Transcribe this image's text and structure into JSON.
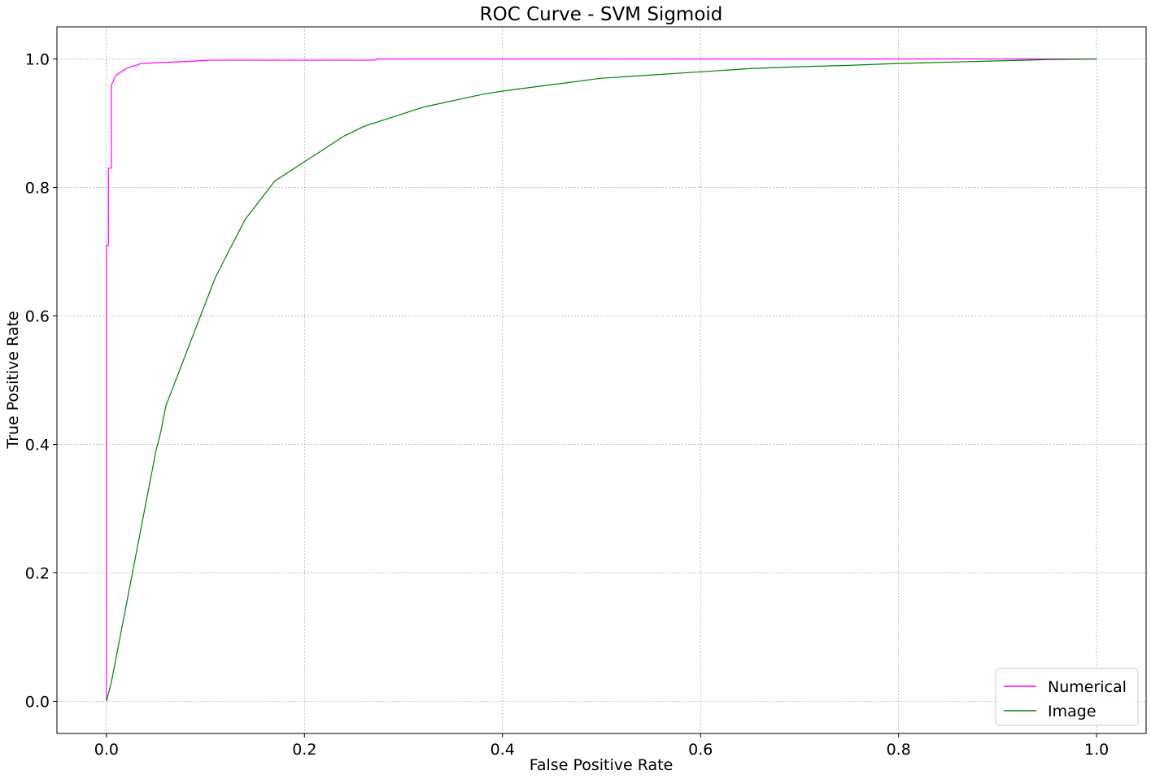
{
  "chart_data": {
    "type": "line",
    "title": "ROC Curve - SVM Sigmoid",
    "xlabel": "False Positive Rate",
    "ylabel": "True Positive Rate",
    "xlim": [
      -0.05,
      1.05
    ],
    "ylim": [
      -0.05,
      1.05
    ],
    "xticks": [
      "0.0",
      "0.2",
      "0.4",
      "0.6",
      "0.8",
      "1.0"
    ],
    "yticks": [
      "0.0",
      "0.2",
      "0.4",
      "0.6",
      "0.8",
      "1.0"
    ],
    "grid": true,
    "legend_position": "lower-right",
    "series": [
      {
        "name": "Numerical",
        "color": "#ff00ff",
        "x": [
          0.0,
          0.0,
          0.002,
          0.002,
          0.005,
          0.005,
          0.007,
          0.008,
          0.01,
          0.013,
          0.016,
          0.02,
          0.025,
          0.03,
          0.035,
          0.05,
          0.08,
          0.105,
          0.27,
          0.275,
          1.0
        ],
        "y": [
          0.0,
          0.71,
          0.71,
          0.83,
          0.83,
          0.96,
          0.965,
          0.97,
          0.975,
          0.978,
          0.981,
          0.985,
          0.988,
          0.99,
          0.993,
          0.994,
          0.996,
          0.998,
          0.998,
          1.0,
          1.0
        ]
      },
      {
        "name": "Image",
        "color": "#008000",
        "x": [
          0.0,
          0.005,
          0.01,
          0.015,
          0.02,
          0.025,
          0.03,
          0.035,
          0.04,
          0.045,
          0.05,
          0.055,
          0.06,
          0.065,
          0.07,
          0.08,
          0.09,
          0.1,
          0.11,
          0.12,
          0.13,
          0.14,
          0.15,
          0.16,
          0.17,
          0.18,
          0.2,
          0.22,
          0.24,
          0.26,
          0.28,
          0.3,
          0.32,
          0.35,
          0.38,
          0.4,
          0.45,
          0.5,
          0.55,
          0.6,
          0.65,
          0.7,
          0.75,
          0.8,
          0.85,
          0.9,
          0.95,
          1.0
        ],
        "y": [
          0.0,
          0.03,
          0.07,
          0.11,
          0.15,
          0.19,
          0.23,
          0.27,
          0.31,
          0.35,
          0.39,
          0.42,
          0.46,
          0.48,
          0.5,
          0.54,
          0.58,
          0.62,
          0.66,
          0.69,
          0.72,
          0.75,
          0.77,
          0.79,
          0.81,
          0.82,
          0.84,
          0.86,
          0.88,
          0.895,
          0.905,
          0.915,
          0.925,
          0.935,
          0.945,
          0.95,
          0.96,
          0.97,
          0.975,
          0.98,
          0.985,
          0.988,
          0.99,
          0.993,
          0.995,
          0.997,
          0.999,
          1.0
        ]
      }
    ]
  }
}
